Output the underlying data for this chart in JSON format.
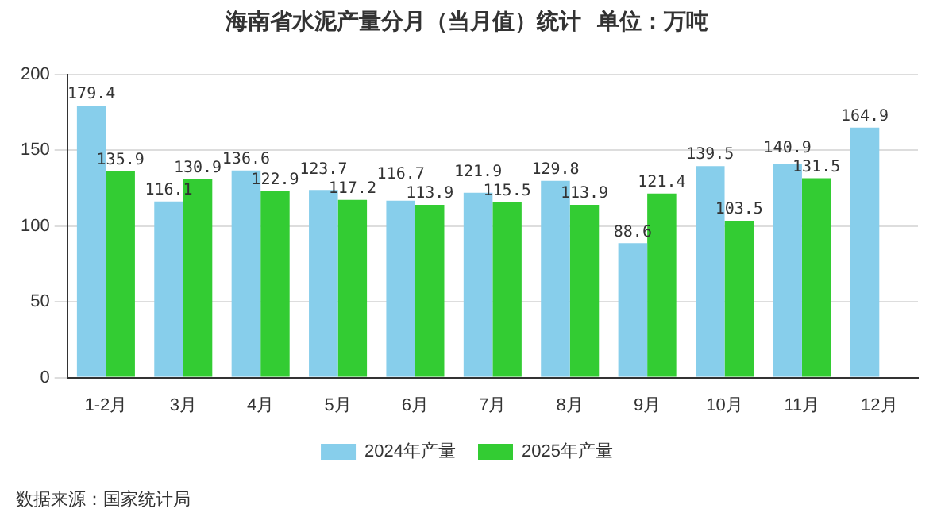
{
  "chart_data": {
    "type": "bar",
    "title": "海南省水泥产量分月（当月值）统计  单位：万吨",
    "categories": [
      "1-2月",
      "3月",
      "4月",
      "5月",
      "6月",
      "7月",
      "8月",
      "9月",
      "10月",
      "11月",
      "12月"
    ],
    "series": [
      {
        "name": "2024年产量",
        "color": "#87ceeb",
        "values": [
          179.4,
          116.1,
          136.6,
          123.7,
          116.7,
          121.9,
          129.8,
          88.6,
          139.5,
          140.9,
          164.9
        ]
      },
      {
        "name": "2025年产量",
        "color": "#33cc33",
        "values": [
          135.9,
          130.9,
          122.9,
          117.2,
          113.9,
          115.5,
          113.9,
          121.4,
          103.5,
          131.5,
          null
        ]
      }
    ],
    "ylim": [
      0,
      200
    ],
    "yticks": [
      0,
      50,
      100,
      150,
      200
    ],
    "grid": "y",
    "legend": "bottom",
    "data_labels": true,
    "annotations": [
      "数据来源：国家统计局"
    ]
  }
}
